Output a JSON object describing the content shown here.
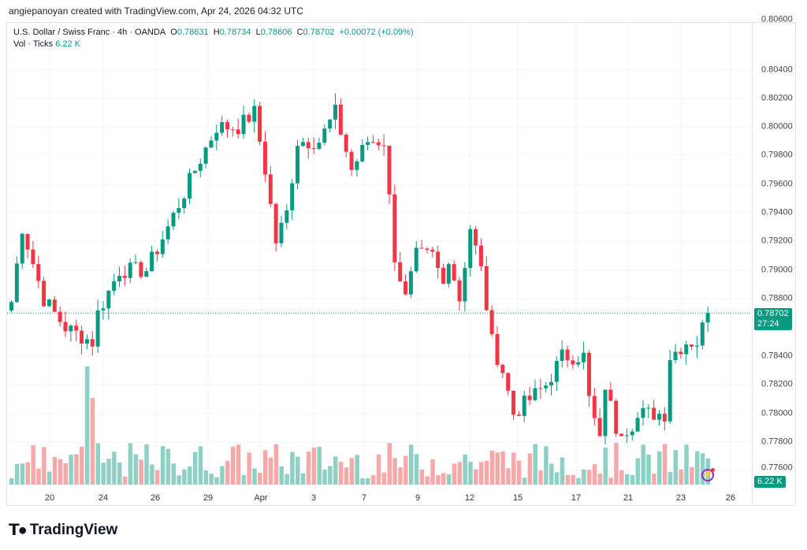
{
  "credit": "angiepanoyan created with TradingView.com, Apr 24, 2026 04:32 UTC",
  "legend": {
    "symbol": "U.S. Dollar / Swiss Franc · 4h · OANDA",
    "o_label": "O",
    "o": "0.78631",
    "h_label": "H",
    "h": "0.78734",
    "l_label": "L",
    "l": "0.78606",
    "c_label": "C",
    "c": "0.78702",
    "change": "+0.00072 (+0.09%)",
    "vol_label": "Vol · Ticks",
    "vol": "6.22 K"
  },
  "price_axis": [
    "0.80600",
    "0.80400",
    "0.80200",
    "0.80000",
    "0.79800",
    "0.79600",
    "0.79400",
    "0.79200",
    "0.79000",
    "0.78800",
    "0.78400",
    "0.78200",
    "0.78000",
    "0.77800",
    "0.77600"
  ],
  "time_axis": [
    "20",
    "24",
    "26",
    "29",
    "Apr",
    "3",
    "7",
    "9",
    "12",
    "15",
    "17",
    "21",
    "23",
    "26"
  ],
  "current_price": {
    "price": "0.78702",
    "countdown": "27:24",
    "value": 0.78702
  },
  "volume_tag": "6.22 K",
  "logo": "TradingView",
  "colors": {
    "up": "#089981",
    "down": "#f23645",
    "vol_up": "#8fd0c4",
    "vol_down": "#f7a9a9"
  },
  "price_path": [
    [
      0,
      0.7878
    ],
    [
      2,
      0.793
    ],
    [
      6,
      0.788
    ],
    [
      10,
      0.786
    ],
    [
      15,
      0.785
    ],
    [
      16,
      0.787
    ],
    [
      20,
      0.79
    ],
    [
      25,
      0.79
    ],
    [
      29,
      0.793
    ],
    [
      34,
      0.797
    ],
    [
      38,
      0.8
    ],
    [
      42,
      0.8
    ],
    [
      45,
      0.801
    ],
    [
      47,
      0.797
    ],
    [
      49,
      0.792
    ],
    [
      51,
      0.794
    ],
    [
      53,
      0.799
    ],
    [
      57,
      0.799
    ],
    [
      60,
      0.801
    ],
    [
      63,
      0.797
    ],
    [
      66,
      0.799
    ],
    [
      69,
      0.799
    ],
    [
      71,
      0.791
    ],
    [
      73,
      0.788
    ],
    [
      75,
      0.791
    ],
    [
      78,
      0.791
    ],
    [
      80,
      0.789
    ],
    [
      81,
      0.791
    ],
    [
      83,
      0.788
    ],
    [
      85,
      0.793
    ],
    [
      87,
      0.79
    ],
    [
      89,
      0.785
    ],
    [
      91,
      0.783
    ],
    [
      93,
      0.78
    ],
    [
      96,
      0.781
    ],
    [
      99,
      0.782
    ],
    [
      102,
      0.784
    ],
    [
      106,
      0.784
    ],
    [
      107,
      0.781
    ],
    [
      109,
      0.778
    ],
    [
      110,
      0.782
    ],
    [
      112,
      0.779
    ],
    [
      114,
      0.779
    ],
    [
      117,
      0.78
    ],
    [
      121,
      0.78
    ],
    [
      122,
      0.784
    ],
    [
      125,
      0.785
    ],
    [
      127,
      0.785
    ],
    [
      129,
      0.78702
    ]
  ]
}
